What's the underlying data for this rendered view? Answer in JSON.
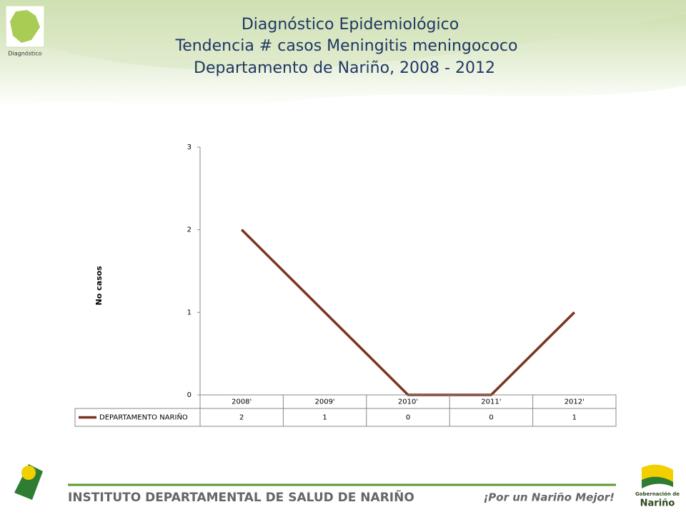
{
  "header": {
    "logo_label": "Diagnóstico"
  },
  "chart_data": {
    "type": "line",
    "title": [
      "Diagnóstico Epidemiológico",
      "Tendencia # casos Meningitis meningococo",
      "Departamento de Nariño,  2008 - 2012"
    ],
    "y_label": "No casos",
    "categories": [
      "2008'",
      "2009'",
      "2010'",
      "2011'",
      "2012'"
    ],
    "series": [
      {
        "name": "DEPARTAMENTO NARIÑO",
        "color": "#7b3520",
        "values": [
          2,
          1,
          0,
          0,
          1
        ]
      }
    ],
    "ylim": [
      0,
      3
    ],
    "yticks": [
      0,
      1,
      2,
      3
    ],
    "grid": false,
    "data_table": true
  },
  "footer": {
    "institute": "INSTITUTO DEPARTAMENTAL DE SALUD DE NARIÑO",
    "slogan": "¡Por un Nariño Mejor!",
    "gov_line1": "Gobernación de",
    "gov_line2": "Nariño"
  }
}
